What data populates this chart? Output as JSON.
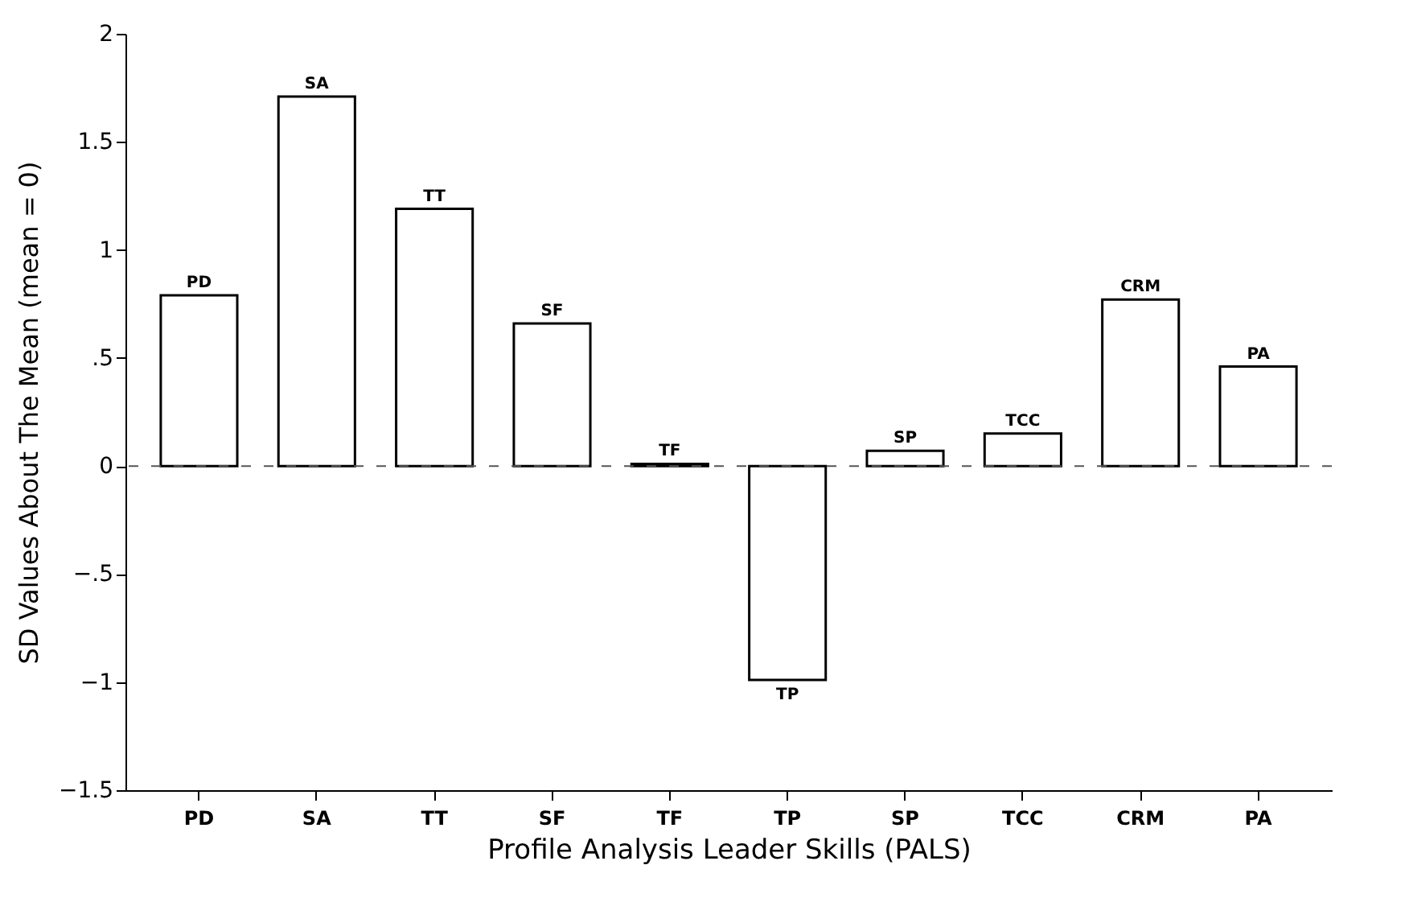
{
  "chart_data": {
    "type": "bar",
    "xlabel": "Profile Analysis Leader Skills (PALS)",
    "ylabel": "SD Values About The Mean (mean = 0)",
    "categories": [
      "PD",
      "SA",
      "TT",
      "SF",
      "TF",
      "TP",
      "SP",
      "TCC",
      "CRM",
      "PA"
    ],
    "values": [
      0.79,
      1.71,
      1.19,
      0.66,
      0.01,
      -0.99,
      0.07,
      0.15,
      0.77,
      0.46
    ],
    "color": "#ffffff",
    "ylim": [
      -1.5,
      2
    ],
    "yticks": [
      {
        "value": 2,
        "label": "2"
      },
      {
        "value": 1.5,
        "label": "1.5"
      },
      {
        "value": 1,
        "label": "1"
      },
      {
        "value": 0.5,
        "label": ".5"
      },
      {
        "value": 0,
        "label": "0"
      },
      {
        "value": -0.5,
        "label": "−.5"
      },
      {
        "value": -1,
        "label": "−1"
      },
      {
        "value": -1.5,
        "label": "−1.5"
      }
    ],
    "ref_lines": [
      {
        "axis": "y",
        "value": 0,
        "line_style": "dashed",
        "color": "#555555"
      }
    ],
    "annotations": [
      {
        "text": "PD",
        "x": "PD",
        "y": 0.79
      },
      {
        "text": "SA",
        "x": "SA",
        "y": 1.71
      },
      {
        "text": "TT",
        "x": "TT",
        "y": 1.19
      },
      {
        "text": "SF",
        "x": "SF",
        "y": 0.66
      },
      {
        "text": "TF",
        "x": "TF",
        "y": 0.01
      },
      {
        "text": "TP",
        "x": "TP",
        "y": -0.99
      },
      {
        "text": "SP",
        "x": "SP",
        "y": 0.07
      },
      {
        "text": "TCC",
        "x": "TCC",
        "y": 0.15
      },
      {
        "text": "CRM",
        "x": "CRM",
        "y": 0.77
      },
      {
        "text": "PA",
        "x": "PA",
        "y": 0.46
      }
    ],
    "grid": false
  }
}
